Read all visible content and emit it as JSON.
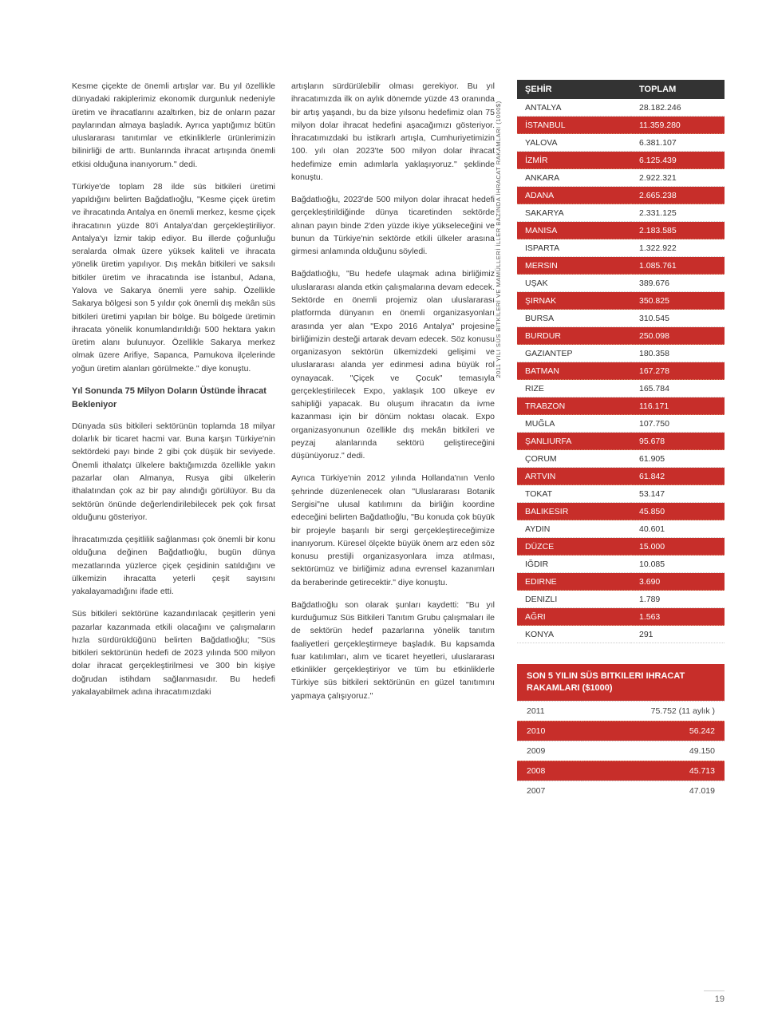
{
  "rotated_caption": "2011 YILI SÜS BİTKİLERİ VE MAMÜLLERİ İLLER BAZINDA İHRACAT RAKAMLARI (1000$)",
  "col1_p1": "Kesme çiçekte de önemli artışlar var. Bu yıl özellikle dünyadaki rakiplerimiz ekonomik durgunluk nedeniyle üretim ve ihracatlarını azaltırken, biz de onların pazar paylarından almaya başladık. Ayrıca yaptığımız bütün uluslararası tanıtımlar ve etkinliklerle ürünlerimizin bilinirliği de arttı. Bunlarında ihracat artışında önemli etkisi olduğuna inanıyorum.\" dedi.",
  "col1_p2": "Türkiye'de toplam 28 ilde süs bitkileri üretimi yapıldığını belirten Bağdatlıoğlu, \"Kesme çiçek üretim ve ihracatında Antalya en önemli merkez, kesme çiçek ihracatının yüzde 80'i Antalya'dan gerçekleştiriliyor. Antalya'yı İzmir takip ediyor. Bu illerde çoğunluğu seralarda olmak üzere yüksek kaliteli ve ihracata yönelik üretim yapılıyor. Dış mekân bitkileri ve saksılı bitkiler üretim ve ihracatında ise İstanbul, Adana, Yalova ve Sakarya önemli yere sahip. Özellikle Sakarya bölgesi son 5 yıldır çok önemli dış mekân süs bitkileri üretimi yapılan bir bölge. Bu bölgede üretimin ihracata yönelik konumlandırıldığı 500 hektara yakın üretim alanı bulunuyor. Özellikle Sakarya merkez olmak üzere Arifiye, Sapanca, Pamukova ilçelerinde yoğun üretim alanları görülmekte.\" diye konuştu.",
  "col1_sub": "Yıl Sonunda 75 Milyon Doların Üstünde İhracat Bekleniyor",
  "col1_p3": "Dünyada süs bitkileri sektörünün toplamda 18 milyar dolarlık bir ticaret hacmi var. Buna karşın Türkiye'nin sektördeki payı binde 2 gibi çok düşük bir seviyede. Önemli ithalatçı ülkelere baktığımızda özellikle yakın pazarlar olan Almanya, Rusya gibi ülkelerin ithalatından çok az bir pay alındığı görülüyor. Bu da sektörün önünde değerlendirilebilecek pek çok fırsat olduğunu gösteriyor.",
  "col1_p4": "İhracatımızda çeşitlilik sağlanması çok önemli bir konu olduğuna değinen Bağdatlıoğlu, bugün dünya mezatlarında yüzlerce çiçek çeşidinin satıldığını ve ülkemizin ihracatta yeterli çeşit sayısını yakalayamadığını ifade etti.",
  "col1_p5": "Süs bitkileri sektörüne kazandırılacak çeşitlerin yeni pazarlar kazanmada etkili olacağını ve çalışmaların hızla sürdürüldüğünü belirten Bağdatlıoğlu; \"Süs bitkileri sektörünün hedefi de 2023 yılında 500 milyon dolar ihracat gerçekleştirilmesi ve 300 bin kişiye doğrudan istihdam sağlanmasıdır. Bu hedefi yakalayabilmek adına ihracatımızdaki",
  "col2_p1": "artışların sürdürülebilir olması gerekiyor. Bu yıl ihracatımızda ilk on aylık dönemde yüzde 43 oranında bir artış yaşandı, bu da bize yılsonu hedefimiz olan 75 milyon dolar ihracat hedefini aşacağımızı gösteriyor. İhracatımızdaki bu istikrarlı artışla, Cumhuriyetimizin 100. yılı olan 2023'te 500 milyon dolar ihracat hedefimize emin adımlarla yaklaşıyoruz.\" şeklinde konuştu.",
  "col2_p2": "Bağdatlıoğlu, 2023'de 500 milyon dolar ihracat hedefi gerçekleştirildiğinde dünya ticaretinden sektörde alınan payın binde 2'den yüzde ikiye yükseleceğini ve bunun da Türkiye'nin sektörde etkili ülkeler arasına girmesi anlamında olduğunu söyledi.",
  "col2_p3": "Bağdatlıoğlu, \"Bu hedefe ulaşmak adına birliğimiz uluslararası alanda etkin çalışmalarına devam edecek. Sektörde en önemli projemiz olan uluslararası platformda dünyanın en önemli organizasyonları arasında yer alan \"Expo 2016 Antalya\" projesine birliğimizin desteği artarak devam edecek. Söz konusu organizasyon sektörün ülkemizdeki gelişimi ve uluslararası alanda yer edinmesi adına büyük rol oynayacak. \"Çiçek ve Çocuk\" temasıyla gerçekleştirilecek Expo, yaklaşık 100 ülkeye ev sahipliği yapacak. Bu oluşum ihracatın da ivme kazanması için bir dönüm noktası olacak. Expo organizasyonunun özellikle dış mekân bitkileri ve peyzaj alanlarında sektörü geliştireceğini düşünüyoruz.\" dedi.",
  "col2_p4": "Ayrıca Türkiye'nin 2012 yılında Hollanda'nın Venlo şehrinde düzenlenecek olan \"Uluslararası Botanik Sergisi\"ne ulusal katılımını da birliğin koordine edeceğini belirten Bağdatlıoğlu, \"Bu konuda çok büyük bir projeyle başarılı bir sergi gerçekleştireceğimize inanıyorum. Küresel ölçekte büyük önem arz eden söz konusu prestijli organizasyonlara imza atılması, sektörümüz ve birliğimiz adına evrensel kazanımları da beraberinde getirecektir.\" diye konuştu.",
  "col2_p5": "Bağdatlıoğlu son olarak şunları kaydetti: \"Bu yıl kurduğumuz Süs Bitkileri Tanıtım Grubu çalışmaları ile de sektörün hedef pazarlarına yönelik tanıtım faaliyetleri gerçekleştirmeye başladık. Bu kapsamda fuar katılımları, alım ve ticaret heyetleri, uluslararası etkinlikler gerçekleştiriyor ve tüm bu etkinliklerle Türkiye süs bitkileri sektörünün en güzel tanıtımını yapmaya çalışıyoruz.\"",
  "table1": {
    "head_city": "ŞEHİR",
    "head_total": "TOPLAM",
    "rows": [
      {
        "c": "ANTALYA",
        "v": "28.182.246",
        "hl": false
      },
      {
        "c": "İSTANBUL",
        "v": "11.359.280",
        "hl": true
      },
      {
        "c": "YALOVA",
        "v": "6.381.107",
        "hl": false
      },
      {
        "c": "İZMİR",
        "v": "6.125.439",
        "hl": true
      },
      {
        "c": "ANKARA",
        "v": "2.922.321",
        "hl": false
      },
      {
        "c": "ADANA",
        "v": "2.665.238",
        "hl": true
      },
      {
        "c": "SAKARYA",
        "v": "2.331.125",
        "hl": false
      },
      {
        "c": "MANISA",
        "v": "2.183.585",
        "hl": true
      },
      {
        "c": "ISPARTA",
        "v": "1.322.922",
        "hl": false
      },
      {
        "c": "MERSIN",
        "v": "1.085.761",
        "hl": true
      },
      {
        "c": "UŞAK",
        "v": "389.676",
        "hl": false
      },
      {
        "c": "ŞIRNAK",
        "v": "350.825",
        "hl": true
      },
      {
        "c": "BURSA",
        "v": "310.545",
        "hl": false
      },
      {
        "c": "BURDUR",
        "v": "250.098",
        "hl": true
      },
      {
        "c": "GAZIANTEP",
        "v": "180.358",
        "hl": false
      },
      {
        "c": "BATMAN",
        "v": "167.278",
        "hl": true
      },
      {
        "c": "RIZE",
        "v": "165.784",
        "hl": false
      },
      {
        "c": "TRABZON",
        "v": "116.171",
        "hl": true
      },
      {
        "c": "MUĞLA",
        "v": "107.750",
        "hl": false
      },
      {
        "c": "ŞANLIURFA",
        "v": "95.678",
        "hl": true
      },
      {
        "c": "ÇORUM",
        "v": "61.905",
        "hl": false
      },
      {
        "c": "ARTVIN",
        "v": "61.842",
        "hl": true
      },
      {
        "c": "TOKAT",
        "v": "53.147",
        "hl": false
      },
      {
        "c": "BALIKESIR",
        "v": "45.850",
        "hl": true
      },
      {
        "c": "AYDIN",
        "v": "40.601",
        "hl": false
      },
      {
        "c": "DÜZCE",
        "v": "15.000",
        "hl": true
      },
      {
        "c": "IĞDIR",
        "v": "10.085",
        "hl": false
      },
      {
        "c": "EDIRNE",
        "v": "3.690",
        "hl": true
      },
      {
        "c": "DENIZLI",
        "v": "1.789",
        "hl": false
      },
      {
        "c": "AĞRI",
        "v": "1.563",
        "hl": true
      },
      {
        "c": "KONYA",
        "v": "291",
        "hl": false
      }
    ]
  },
  "table2": {
    "title": "SON 5 YILIN SÜS BITKILERI IHRACAT RAKAMLARI ($1000)",
    "rows": [
      {
        "y": "2011",
        "v": "75.752 (11 aylık )",
        "hl": false
      },
      {
        "y": "2010",
        "v": "56.242",
        "hl": true
      },
      {
        "y": "2009",
        "v": "49.150",
        "hl": false
      },
      {
        "y": "2008",
        "v": "45.713",
        "hl": true
      },
      {
        "y": "2007",
        "v": "47.019",
        "hl": false
      }
    ]
  },
  "pagenum": "19"
}
